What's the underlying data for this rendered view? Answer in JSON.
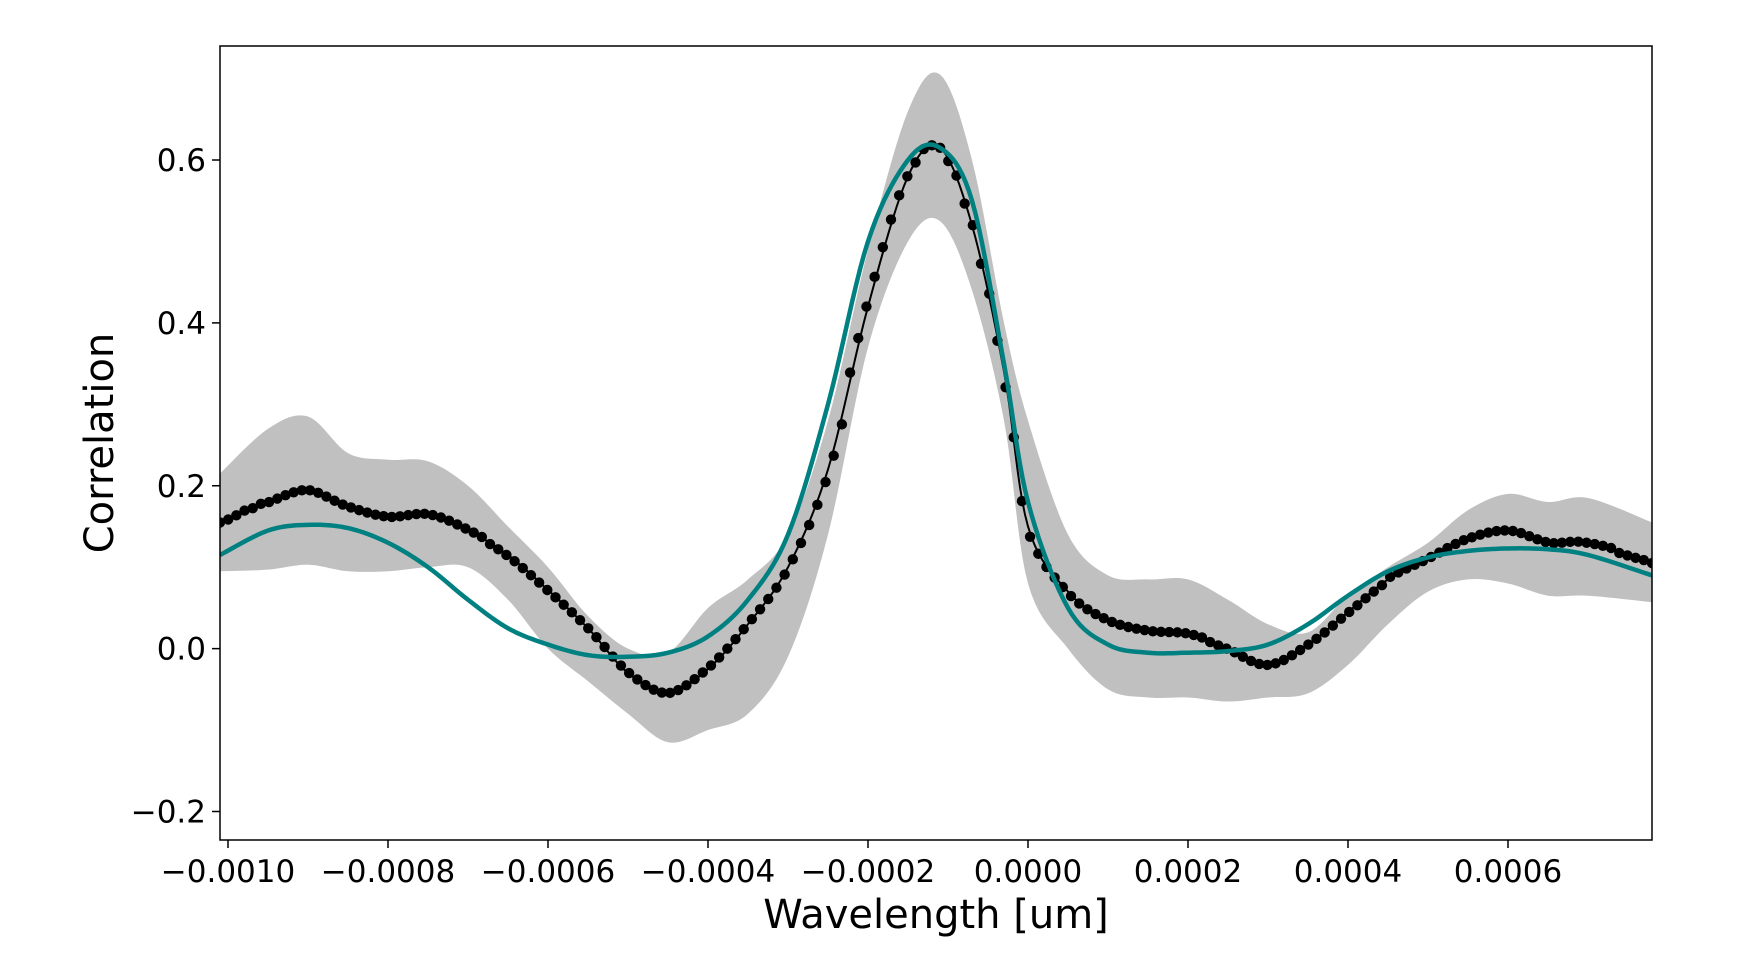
{
  "chart_data": {
    "type": "line",
    "title": "",
    "xlabel": "Wavelength [um]",
    "ylabel": "Correlation",
    "xlim": [
      -0.00101,
      0.00078
    ],
    "ylim": [
      -0.235,
      0.74
    ],
    "grid": false,
    "legend": "none",
    "x_ticks": [
      -0.001,
      -0.0008,
      -0.0006,
      -0.0004,
      -0.0002,
      0.0,
      0.0002,
      0.0004,
      0.0006
    ],
    "x_tick_labels": [
      "−0.0010",
      "−0.0008",
      "−0.0006",
      "−0.0004",
      "−0.0002",
      "0.0000",
      "0.0002",
      "0.0004",
      "0.0006"
    ],
    "y_ticks": [
      -0.2,
      0.0,
      0.2,
      0.4,
      0.6
    ],
    "y_tick_labels": [
      "−0.2",
      "0.0",
      "0.2",
      "0.4",
      "0.6"
    ],
    "colors": {
      "points": "#000000",
      "model_line": "#008080",
      "band": "#c0c0c0",
      "axes": "#000000"
    },
    "series": [
      {
        "role": "observed",
        "style": "black line with circle markers",
        "x": [
          -0.00101,
          -0.00095,
          -0.0009,
          -0.00085,
          -0.0008,
          -0.00075,
          -0.0007,
          -0.00065,
          -0.0006,
          -0.00055,
          -0.0005,
          -0.00045,
          -0.0004,
          -0.00035,
          -0.0003,
          -0.00025,
          -0.0002,
          -0.00015,
          -0.00011,
          -7e-05,
          -3e-05,
          0.0,
          5e-05,
          0.0001,
          0.00015,
          0.0002,
          0.00025,
          0.0003,
          0.00035,
          0.0004,
          0.00045,
          0.0005,
          0.00055,
          0.0006,
          0.00065,
          0.0007,
          0.00078
        ],
        "y": [
          0.155,
          0.18,
          0.195,
          0.175,
          0.162,
          0.165,
          0.145,
          0.115,
          0.072,
          0.025,
          -0.03,
          -0.055,
          -0.025,
          0.03,
          0.1,
          0.22,
          0.42,
          0.58,
          0.615,
          0.52,
          0.34,
          0.15,
          0.07,
          0.035,
          0.022,
          0.018,
          0.0,
          -0.02,
          0.005,
          0.045,
          0.085,
          0.11,
          0.135,
          0.145,
          0.13,
          0.13,
          0.105
        ]
      },
      {
        "role": "model",
        "style": "teal solid line",
        "x": [
          -0.00101,
          -0.00095,
          -0.0009,
          -0.00085,
          -0.0008,
          -0.00075,
          -0.0007,
          -0.00065,
          -0.0006,
          -0.00055,
          -0.0005,
          -0.00045,
          -0.0004,
          -0.00035,
          -0.0003,
          -0.00025,
          -0.0002,
          -0.00015,
          -0.00011,
          -7e-05,
          -3e-05,
          0.0,
          5e-05,
          0.0001,
          0.00015,
          0.0002,
          0.00025,
          0.0003,
          0.00035,
          0.0004,
          0.00045,
          0.0005,
          0.00055,
          0.0006,
          0.00065,
          0.0007,
          0.00078
        ],
        "y": [
          0.115,
          0.145,
          0.152,
          0.148,
          0.13,
          0.1,
          0.06,
          0.025,
          0.005,
          -0.008,
          -0.01,
          -0.005,
          0.015,
          0.06,
          0.14,
          0.3,
          0.5,
          0.6,
          0.615,
          0.55,
          0.35,
          0.18,
          0.05,
          0.005,
          -0.005,
          -0.005,
          -0.003,
          0.005,
          0.03,
          0.065,
          0.095,
          0.112,
          0.12,
          0.123,
          0.122,
          0.115,
          0.09
        ]
      }
    ],
    "band": {
      "role": "uncertainty",
      "x": [
        -0.00101,
        -0.00095,
        -0.0009,
        -0.00085,
        -0.0008,
        -0.00075,
        -0.0007,
        -0.00065,
        -0.0006,
        -0.00055,
        -0.0005,
        -0.00045,
        -0.0004,
        -0.00035,
        -0.0003,
        -0.00025,
        -0.0002,
        -0.00015,
        -0.00011,
        -7e-05,
        -3e-05,
        0.0,
        5e-05,
        0.0001,
        0.00015,
        0.0002,
        0.00025,
        0.0003,
        0.00035,
        0.0004,
        0.00045,
        0.0005,
        0.00055,
        0.0006,
        0.00065,
        0.0007,
        0.00078
      ],
      "upper": [
        0.215,
        0.27,
        0.285,
        0.24,
        0.232,
        0.23,
        0.2,
        0.15,
        0.1,
        0.04,
        0.0,
        -0.005,
        0.05,
        0.085,
        0.14,
        0.28,
        0.49,
        0.66,
        0.705,
        0.6,
        0.4,
        0.28,
        0.14,
        0.09,
        0.085,
        0.085,
        0.06,
        0.03,
        0.02,
        0.065,
        0.1,
        0.13,
        0.17,
        0.19,
        0.18,
        0.185,
        0.155
      ],
      "lower": [
        0.095,
        0.097,
        0.103,
        0.095,
        0.095,
        0.1,
        0.1,
        0.06,
        0.0,
        -0.04,
        -0.08,
        -0.115,
        -0.1,
        -0.08,
        -0.01,
        0.14,
        0.37,
        0.5,
        0.525,
        0.44,
        0.28,
        0.08,
        0.0,
        -0.05,
        -0.06,
        -0.06,
        -0.065,
        -0.06,
        -0.055,
        -0.02,
        0.03,
        0.07,
        0.085,
        0.08,
        0.065,
        0.065,
        0.057
      ]
    }
  }
}
